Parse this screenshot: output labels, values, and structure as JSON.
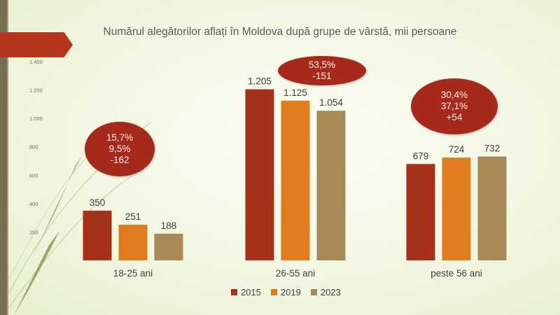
{
  "chart_data": {
    "type": "bar",
    "title": "Numărul alegătorilor aflați în Moldova după grupe de vârstă, mii persoane",
    "categories": [
      "18-25 ani",
      "26-55 ani",
      "peste 56 ani"
    ],
    "series": [
      {
        "name": "2015",
        "values": [
          350,
          1205,
          679
        ],
        "labels": [
          "350",
          "1.205",
          "679"
        ],
        "color": "#a6311a"
      },
      {
        "name": "2019",
        "values": [
          251,
          1125,
          724
        ],
        "labels": [
          "251",
          "1.125",
          "724"
        ],
        "color": "#e07c1e"
      },
      {
        "name": "2023",
        "values": [
          188,
          1054,
          732
        ],
        "labels": [
          "188",
          "1.054",
          "732"
        ],
        "color": "#a88a58"
      }
    ],
    "ylim": [
      0,
      1400
    ],
    "yticks": [
      200,
      400,
      600,
      800,
      1000,
      1200,
      1400
    ],
    "ytick_labels": [
      "200",
      "400",
      "600",
      "800",
      "1.000",
      "1.200",
      "1.400"
    ],
    "legend": "bottom",
    "annotations": [
      {
        "category": "18-25 ani",
        "lines": [
          "15,7%",
          "9,5%",
          "-162"
        ]
      },
      {
        "category": "26-55 ani",
        "lines": [
          "53,5%",
          "-151"
        ]
      },
      {
        "category": "peste 56 ani",
        "lines": [
          "30,4%",
          "37,1%",
          "+54"
        ]
      }
    ]
  },
  "colors": {
    "accent": "#b5361b",
    "bubble": "#a6291b"
  }
}
